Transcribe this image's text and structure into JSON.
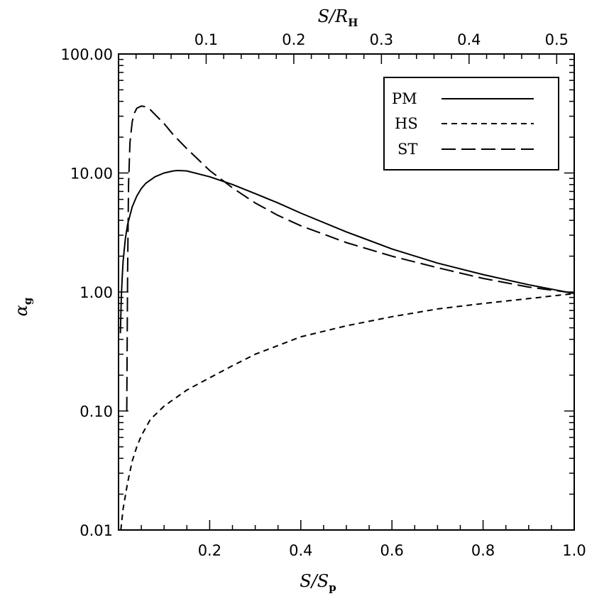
{
  "chart_data": {
    "type": "line",
    "x_axis": {
      "label_main": "S/S",
      "label_sub": "p",
      "range": [
        0,
        1.0
      ],
      "tick_labels": [
        "0.2",
        "0.4",
        "0.6",
        "0.8",
        "1.0"
      ]
    },
    "top_axis": {
      "label_main": "S/R",
      "label_sub": "H",
      "range": [
        0,
        0.52
      ],
      "tick_labels": [
        "0.1",
        "0.2",
        "0.3",
        "0.4",
        "0.5"
      ]
    },
    "y_axis": {
      "label_main": "α",
      "label_sub": "g",
      "scale": "log",
      "range": [
        0.01,
        100
      ],
      "tick_labels": [
        "0.01",
        "0.10",
        "1.00",
        "10.00",
        "100.00"
      ]
    },
    "legend": {
      "position": "top-right",
      "entries": [
        "PM",
        "HS",
        "ST"
      ]
    },
    "series": [
      {
        "name": "PM",
        "style": "solid",
        "x": [
          0.004,
          0.006,
          0.008,
          0.01,
          0.015,
          0.02,
          0.03,
          0.04,
          0.05,
          0.06,
          0.08,
          0.1,
          0.12,
          0.13,
          0.15,
          0.2,
          0.25,
          0.3,
          0.35,
          0.4,
          0.5,
          0.6,
          0.7,
          0.8,
          0.9,
          1.0
        ],
        "y": [
          0.45,
          0.9,
          1.3,
          1.8,
          2.8,
          3.7,
          5.2,
          6.4,
          7.4,
          8.2,
          9.3,
          10.0,
          10.4,
          10.5,
          10.4,
          9.3,
          8.0,
          6.7,
          5.6,
          4.6,
          3.2,
          2.3,
          1.75,
          1.4,
          1.15,
          0.97
        ]
      },
      {
        "name": "HS",
        "style": "dashed",
        "x": [
          0.005,
          0.01,
          0.02,
          0.03,
          0.04,
          0.05,
          0.07,
          0.1,
          0.15,
          0.2,
          0.25,
          0.3,
          0.4,
          0.5,
          0.6,
          0.7,
          0.8,
          0.9,
          1.0
        ],
        "y": [
          0.01,
          0.015,
          0.025,
          0.038,
          0.05,
          0.062,
          0.085,
          0.11,
          0.15,
          0.19,
          0.24,
          0.3,
          0.42,
          0.52,
          0.62,
          0.72,
          0.8,
          0.88,
          0.97
        ]
      },
      {
        "name": "ST",
        "style": "long-dashed",
        "x": [
          0.018,
          0.019,
          0.02,
          0.022,
          0.025,
          0.03,
          0.035,
          0.04,
          0.05,
          0.06,
          0.07,
          0.08,
          0.1,
          0.12,
          0.15,
          0.2,
          0.25,
          0.3,
          0.35,
          0.4,
          0.5,
          0.6,
          0.7,
          0.8,
          0.9,
          1.0
        ],
        "y": [
          0.1,
          0.4,
          1.5,
          8.0,
          18.0,
          27.0,
          32.0,
          35.0,
          36.5,
          36.0,
          34.0,
          31.0,
          26.0,
          21.0,
          16.0,
          10.5,
          7.5,
          5.6,
          4.4,
          3.6,
          2.6,
          2.0,
          1.6,
          1.3,
          1.1,
          0.98
        ]
      }
    ]
  }
}
